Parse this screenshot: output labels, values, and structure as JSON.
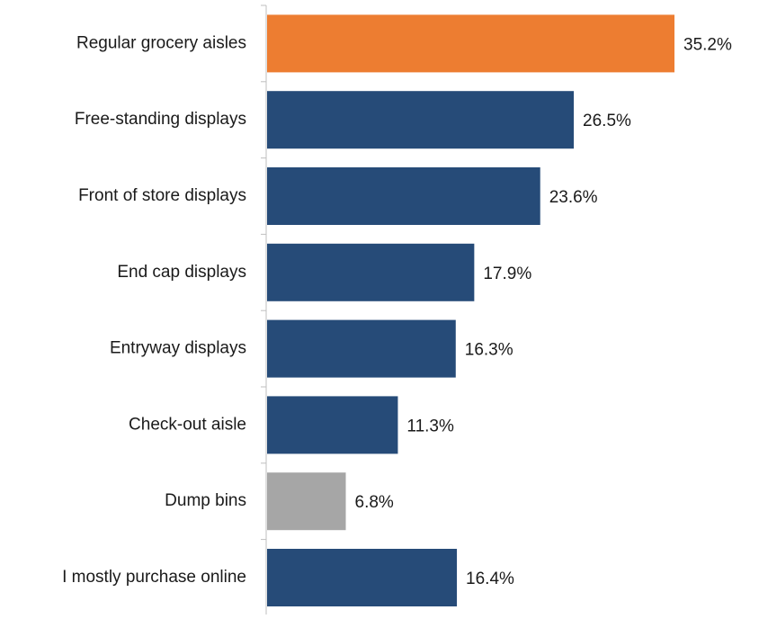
{
  "chart_data": {
    "type": "bar",
    "orientation": "horizontal",
    "categories": [
      "Regular grocery aisles",
      "Free-standing displays",
      "Front of store displays",
      "End cap displays",
      "Entryway displays",
      "Check-out aisle",
      "Dump bins",
      "I mostly purchase online"
    ],
    "values": [
      35.2,
      26.5,
      23.6,
      17.9,
      16.3,
      11.3,
      6.8,
      16.4
    ],
    "value_labels": [
      "35.2%",
      "26.5%",
      "23.6%",
      "17.9%",
      "16.3%",
      "11.3%",
      "6.8%",
      "16.4%"
    ],
    "bar_colors": [
      "#ed7d31",
      "#264b78",
      "#264b78",
      "#264b78",
      "#264b78",
      "#264b78",
      "#a6a6a6",
      "#264b78"
    ],
    "unit": "%",
    "xlim": [
      0,
      35.2
    ],
    "title": "",
    "xlabel": "",
    "ylabel": "",
    "grid": false,
    "legend": "none"
  }
}
